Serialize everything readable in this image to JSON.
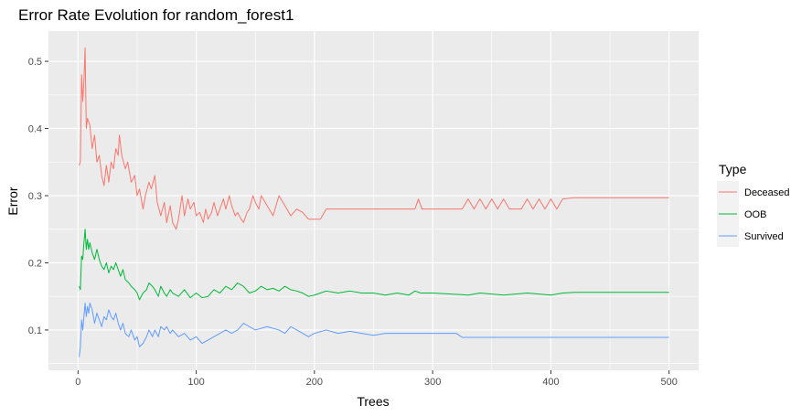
{
  "chart_data": {
    "type": "line",
    "title": "Error Rate Evolution for random_forest1",
    "xlabel": "Trees",
    "ylabel": "Error",
    "xlim": [
      -25,
      525
    ],
    "ylim": [
      0.04,
      0.545
    ],
    "x_ticks": [
      0,
      100,
      200,
      300,
      400,
      500
    ],
    "y_ticks": [
      0.1,
      0.2,
      0.3,
      0.4,
      0.5
    ],
    "grid": true,
    "legend": {
      "title": "Type",
      "position": "right"
    },
    "series": [
      {
        "name": "Deceased",
        "color": "#F8766D",
        "points": [
          [
            1,
            0.345
          ],
          [
            2,
            0.35
          ],
          [
            3,
            0.48
          ],
          [
            4,
            0.44
          ],
          [
            5,
            0.47
          ],
          [
            6,
            0.52
          ],
          [
            7,
            0.4
          ],
          [
            8,
            0.415
          ],
          [
            9,
            0.41
          ],
          [
            10,
            0.405
          ],
          [
            12,
            0.37
          ],
          [
            14,
            0.39
          ],
          [
            16,
            0.35
          ],
          [
            18,
            0.36
          ],
          [
            20,
            0.33
          ],
          [
            22,
            0.315
          ],
          [
            24,
            0.345
          ],
          [
            26,
            0.32
          ],
          [
            28,
            0.35
          ],
          [
            30,
            0.34
          ],
          [
            32,
            0.37
          ],
          [
            34,
            0.36
          ],
          [
            35,
            0.39
          ],
          [
            37,
            0.36
          ],
          [
            40,
            0.34
          ],
          [
            42,
            0.35
          ],
          [
            45,
            0.32
          ],
          [
            48,
            0.33
          ],
          [
            50,
            0.3
          ],
          [
            52,
            0.31
          ],
          [
            55,
            0.28
          ],
          [
            57,
            0.3
          ],
          [
            60,
            0.32
          ],
          [
            62,
            0.31
          ],
          [
            65,
            0.33
          ],
          [
            67,
            0.29
          ],
          [
            70,
            0.27
          ],
          [
            73,
            0.29
          ],
          [
            75,
            0.26
          ],
          [
            78,
            0.285
          ],
          [
            80,
            0.26
          ],
          [
            83,
            0.25
          ],
          [
            85,
            0.265
          ],
          [
            88,
            0.3
          ],
          [
            90,
            0.27
          ],
          [
            93,
            0.295
          ],
          [
            95,
            0.28
          ],
          [
            98,
            0.29
          ],
          [
            100,
            0.27
          ],
          [
            103,
            0.275
          ],
          [
            106,
            0.26
          ],
          [
            108,
            0.28
          ],
          [
            110,
            0.265
          ],
          [
            113,
            0.275
          ],
          [
            115,
            0.29
          ],
          [
            118,
            0.27
          ],
          [
            120,
            0.28
          ],
          [
            123,
            0.295
          ],
          [
            125,
            0.28
          ],
          [
            128,
            0.3
          ],
          [
            130,
            0.285
          ],
          [
            133,
            0.27
          ],
          [
            135,
            0.275
          ],
          [
            138,
            0.265
          ],
          [
            140,
            0.26
          ],
          [
            143,
            0.275
          ],
          [
            145,
            0.28
          ],
          [
            148,
            0.3
          ],
          [
            150,
            0.29
          ],
          [
            153,
            0.28
          ],
          [
            155,
            0.3
          ],
          [
            160,
            0.285
          ],
          [
            165,
            0.27
          ],
          [
            170,
            0.3
          ],
          [
            175,
            0.285
          ],
          [
            180,
            0.27
          ],
          [
            185,
            0.28
          ],
          [
            190,
            0.275
          ],
          [
            195,
            0.265
          ],
          [
            200,
            0.265
          ],
          [
            205,
            0.265
          ],
          [
            210,
            0.28
          ],
          [
            260,
            0.28
          ],
          [
            285,
            0.28
          ],
          [
            288,
            0.295
          ],
          [
            291,
            0.28
          ],
          [
            325,
            0.28
          ],
          [
            330,
            0.295
          ],
          [
            335,
            0.28
          ],
          [
            340,
            0.295
          ],
          [
            345,
            0.28
          ],
          [
            350,
            0.295
          ],
          [
            355,
            0.28
          ],
          [
            360,
            0.295
          ],
          [
            365,
            0.28
          ],
          [
            375,
            0.28
          ],
          [
            380,
            0.295
          ],
          [
            385,
            0.28
          ],
          [
            390,
            0.295
          ],
          [
            395,
            0.28
          ],
          [
            400,
            0.295
          ],
          [
            405,
            0.28
          ],
          [
            410,
            0.295
          ],
          [
            420,
            0.297
          ],
          [
            500,
            0.297
          ]
        ]
      },
      {
        "name": "OOB",
        "color": "#00BA38",
        "points": [
          [
            1,
            0.165
          ],
          [
            2,
            0.16
          ],
          [
            3,
            0.21
          ],
          [
            4,
            0.205
          ],
          [
            5,
            0.23
          ],
          [
            6,
            0.25
          ],
          [
            7,
            0.22
          ],
          [
            8,
            0.235
          ],
          [
            9,
            0.22
          ],
          [
            10,
            0.23
          ],
          [
            12,
            0.215
          ],
          [
            14,
            0.205
          ],
          [
            16,
            0.22
          ],
          [
            18,
            0.205
          ],
          [
            20,
            0.195
          ],
          [
            22,
            0.19
          ],
          [
            24,
            0.2
          ],
          [
            26,
            0.185
          ],
          [
            28,
            0.195
          ],
          [
            30,
            0.19
          ],
          [
            32,
            0.2
          ],
          [
            34,
            0.19
          ],
          [
            36,
            0.18
          ],
          [
            38,
            0.19
          ],
          [
            40,
            0.175
          ],
          [
            43,
            0.17
          ],
          [
            45,
            0.165
          ],
          [
            48,
            0.16
          ],
          [
            50,
            0.155
          ],
          [
            52,
            0.145
          ],
          [
            55,
            0.155
          ],
          [
            58,
            0.16
          ],
          [
            60,
            0.17
          ],
          [
            63,
            0.165
          ],
          [
            65,
            0.16
          ],
          [
            68,
            0.15
          ],
          [
            70,
            0.165
          ],
          [
            73,
            0.155
          ],
          [
            75,
            0.15
          ],
          [
            78,
            0.16
          ],
          [
            80,
            0.155
          ],
          [
            85,
            0.15
          ],
          [
            90,
            0.16
          ],
          [
            95,
            0.148
          ],
          [
            100,
            0.155
          ],
          [
            105,
            0.148
          ],
          [
            110,
            0.15
          ],
          [
            115,
            0.16
          ],
          [
            120,
            0.155
          ],
          [
            125,
            0.165
          ],
          [
            130,
            0.16
          ],
          [
            135,
            0.17
          ],
          [
            140,
            0.165
          ],
          [
            145,
            0.155
          ],
          [
            150,
            0.158
          ],
          [
            155,
            0.165
          ],
          [
            160,
            0.16
          ],
          [
            165,
            0.162
          ],
          [
            170,
            0.158
          ],
          [
            175,
            0.165
          ],
          [
            180,
            0.16
          ],
          [
            185,
            0.158
          ],
          [
            190,
            0.155
          ],
          [
            195,
            0.15
          ],
          [
            200,
            0.152
          ],
          [
            205,
            0.155
          ],
          [
            210,
            0.158
          ],
          [
            220,
            0.155
          ],
          [
            230,
            0.158
          ],
          [
            240,
            0.155
          ],
          [
            250,
            0.155
          ],
          [
            260,
            0.152
          ],
          [
            270,
            0.155
          ],
          [
            280,
            0.152
          ],
          [
            285,
            0.158
          ],
          [
            290,
            0.155
          ],
          [
            300,
            0.155
          ],
          [
            330,
            0.152
          ],
          [
            340,
            0.155
          ],
          [
            360,
            0.152
          ],
          [
            380,
            0.155
          ],
          [
            400,
            0.152
          ],
          [
            410,
            0.155
          ],
          [
            420,
            0.156
          ],
          [
            500,
            0.156
          ]
        ]
      },
      {
        "name": "Survived",
        "color": "#619CFF",
        "points": [
          [
            1,
            0.06
          ],
          [
            2,
            0.075
          ],
          [
            3,
            0.115
          ],
          [
            4,
            0.1
          ],
          [
            5,
            0.12
          ],
          [
            6,
            0.14
          ],
          [
            7,
            0.12
          ],
          [
            8,
            0.135
          ],
          [
            9,
            0.125
          ],
          [
            10,
            0.14
          ],
          [
            12,
            0.13
          ],
          [
            14,
            0.11
          ],
          [
            16,
            0.125
          ],
          [
            18,
            0.115
          ],
          [
            20,
            0.105
          ],
          [
            22,
            0.12
          ],
          [
            24,
            0.115
          ],
          [
            26,
            0.13
          ],
          [
            28,
            0.12
          ],
          [
            30,
            0.115
          ],
          [
            32,
            0.125
          ],
          [
            34,
            0.11
          ],
          [
            36,
            0.1
          ],
          [
            38,
            0.11
          ],
          [
            40,
            0.095
          ],
          [
            43,
            0.09
          ],
          [
            45,
            0.1
          ],
          [
            48,
            0.085
          ],
          [
            50,
            0.09
          ],
          [
            52,
            0.075
          ],
          [
            55,
            0.08
          ],
          [
            58,
            0.09
          ],
          [
            60,
            0.1
          ],
          [
            63,
            0.09
          ],
          [
            65,
            0.1
          ],
          [
            68,
            0.09
          ],
          [
            70,
            0.105
          ],
          [
            73,
            0.1
          ],
          [
            75,
            0.105
          ],
          [
            78,
            0.095
          ],
          [
            80,
            0.1
          ],
          [
            85,
            0.09
          ],
          [
            90,
            0.095
          ],
          [
            95,
            0.085
          ],
          [
            100,
            0.09
          ],
          [
            105,
            0.08
          ],
          [
            110,
            0.085
          ],
          [
            115,
            0.09
          ],
          [
            120,
            0.095
          ],
          [
            125,
            0.1
          ],
          [
            130,
            0.095
          ],
          [
            135,
            0.1
          ],
          [
            140,
            0.11
          ],
          [
            145,
            0.105
          ],
          [
            150,
            0.1
          ],
          [
            160,
            0.105
          ],
          [
            170,
            0.1
          ],
          [
            175,
            0.095
          ],
          [
            180,
            0.105
          ],
          [
            185,
            0.1
          ],
          [
            190,
            0.095
          ],
          [
            195,
            0.09
          ],
          [
            200,
            0.095
          ],
          [
            210,
            0.1
          ],
          [
            220,
            0.095
          ],
          [
            230,
            0.098
          ],
          [
            240,
            0.095
          ],
          [
            250,
            0.092
          ],
          [
            260,
            0.095
          ],
          [
            300,
            0.095
          ],
          [
            320,
            0.095
          ],
          [
            325,
            0.089
          ],
          [
            500,
            0.089
          ]
        ]
      }
    ]
  }
}
